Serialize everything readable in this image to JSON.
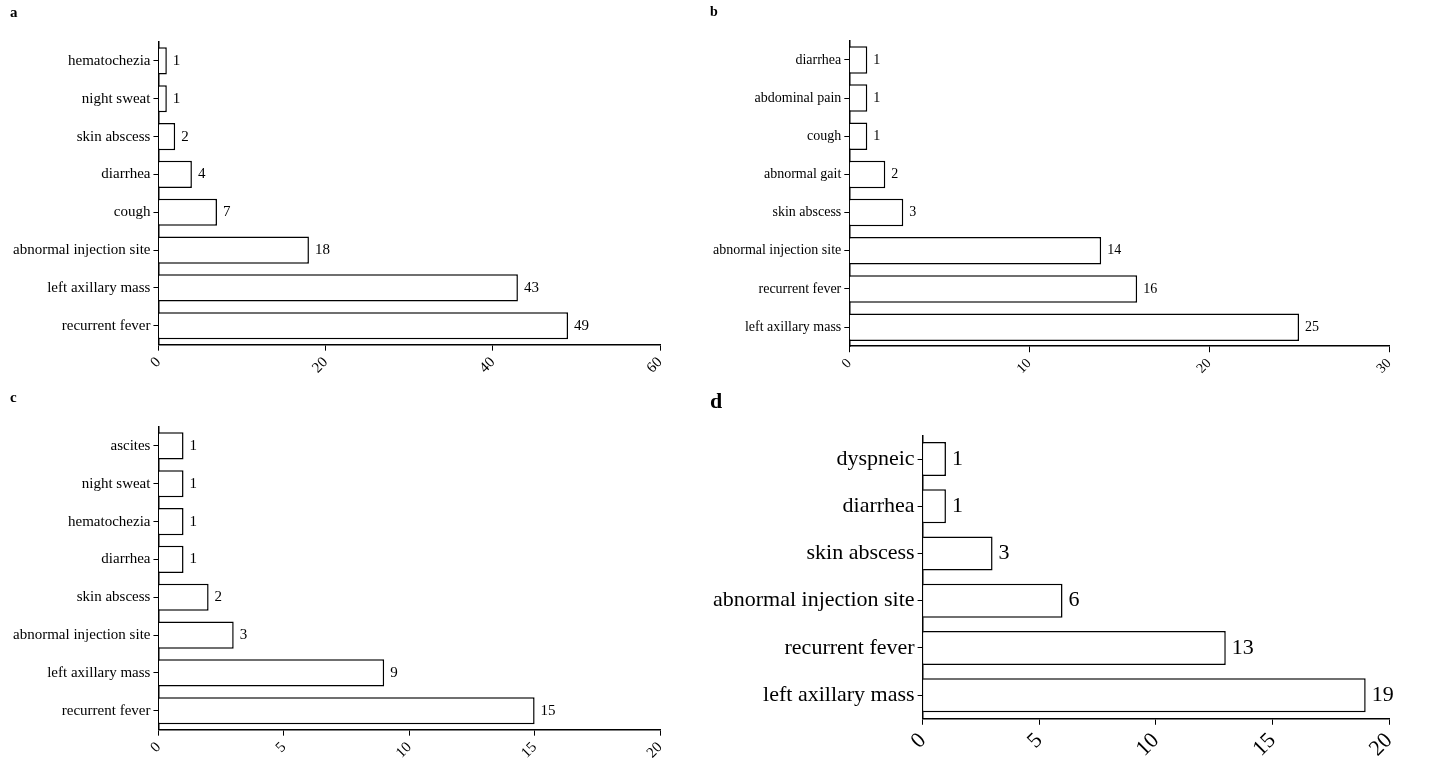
{
  "chart_data": [
    {
      "type": "bar",
      "title": "a",
      "orientation": "horizontal",
      "categories": [
        "hematochezia",
        "night sweat",
        "skin abscess",
        "diarrhea",
        "cough",
        "abnormal injection site",
        "left axillary mass",
        "recurrent fever"
      ],
      "values": [
        1,
        1,
        2,
        4,
        7,
        18,
        43,
        49
      ],
      "color": "#ffffff",
      "xlim": [
        0,
        60
      ],
      "xticks": [
        0,
        20,
        40,
        60
      ],
      "data_labels": true,
      "grid": false,
      "legend": false
    },
    {
      "type": "bar",
      "title": "b",
      "orientation": "horizontal",
      "categories": [
        "diarrhea",
        "abdominal pain",
        "cough",
        "abnormal gait",
        "skin abscess",
        "abnormal injection site",
        "recurrent fever",
        "left axillary mass"
      ],
      "values": [
        1,
        1,
        1,
        2,
        3,
        14,
        16,
        25
      ],
      "color": "#ffffff",
      "xlim": [
        0,
        30
      ],
      "xticks": [
        0,
        10,
        20,
        30
      ],
      "data_labels": true,
      "grid": false,
      "legend": false
    },
    {
      "type": "bar",
      "title": "c",
      "orientation": "horizontal",
      "categories": [
        "ascites",
        "night sweat",
        "hematochezia",
        "diarrhea",
        "skin abscess",
        "abnormal injection site",
        "left axillary mass",
        "recurrent fever"
      ],
      "values": [
        1,
        1,
        1,
        1,
        2,
        3,
        9,
        15
      ],
      "color": "#ffffff",
      "xlim": [
        0,
        20
      ],
      "xticks": [
        0,
        5,
        10,
        15,
        20
      ],
      "data_labels": true,
      "grid": false,
      "legend": false
    },
    {
      "type": "bar",
      "title": "d",
      "orientation": "horizontal",
      "categories": [
        "dyspneic",
        "diarrhea",
        "skin abscess",
        "abnormal injection site",
        "recurrent fever",
        "left axillary mass"
      ],
      "values": [
        1,
        1,
        3,
        6,
        13,
        19
      ],
      "color": "#ffffff",
      "xlim": [
        0,
        20
      ],
      "xticks": [
        0,
        5,
        10,
        15,
        20
      ],
      "data_labels": true,
      "grid": false,
      "legend": false
    }
  ]
}
